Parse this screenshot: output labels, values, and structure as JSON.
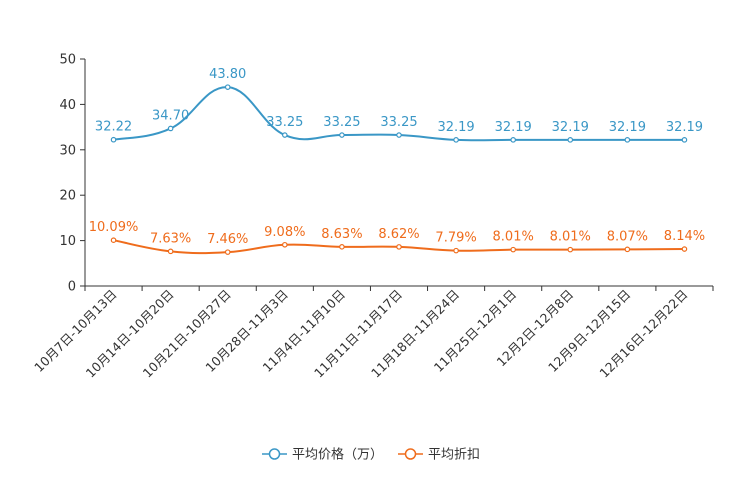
{
  "chart_data": {
    "type": "line",
    "categories": [
      "10月7日-10月13日",
      "10月14日-10月20日",
      "10月21日-10月27日",
      "10月28日-11月3日",
      "11月4日-11月10日",
      "11月11日-11月17日",
      "11月18日-11月24日",
      "11月25日-12月1日",
      "12月2日-12月8日",
      "12月9日-12月15日",
      "12月16日-12月22日"
    ],
    "ylim": [
      0,
      50
    ],
    "yticks": [
      0,
      10,
      20,
      30,
      40,
      50
    ],
    "series": [
      {
        "name": "平均价格（万）",
        "color": "#3a97c6",
        "values": [
          32.22,
          34.7,
          43.8,
          33.25,
          33.25,
          33.25,
          32.19,
          32.19,
          32.19,
          32.19,
          32.19
        ],
        "labels": [
          "32.22",
          "34.70",
          "43.80",
          "33.25",
          "33.25",
          "33.25",
          "32.19",
          "32.19",
          "32.19",
          "32.19",
          "32.19"
        ]
      },
      {
        "name": "平均折扣",
        "color": "#ef6c1c",
        "values": [
          10.09,
          7.63,
          7.46,
          9.08,
          8.63,
          8.62,
          7.79,
          8.01,
          8.01,
          8.07,
          8.14
        ],
        "labels": [
          "10.09%",
          "7.63%",
          "7.46%",
          "9.08%",
          "8.63%",
          "8.62%",
          "7.79%",
          "8.01%",
          "8.01%",
          "8.07%",
          "8.14%"
        ]
      }
    ],
    "legend": [
      "平均价格（万）",
      "平均折扣"
    ]
  }
}
